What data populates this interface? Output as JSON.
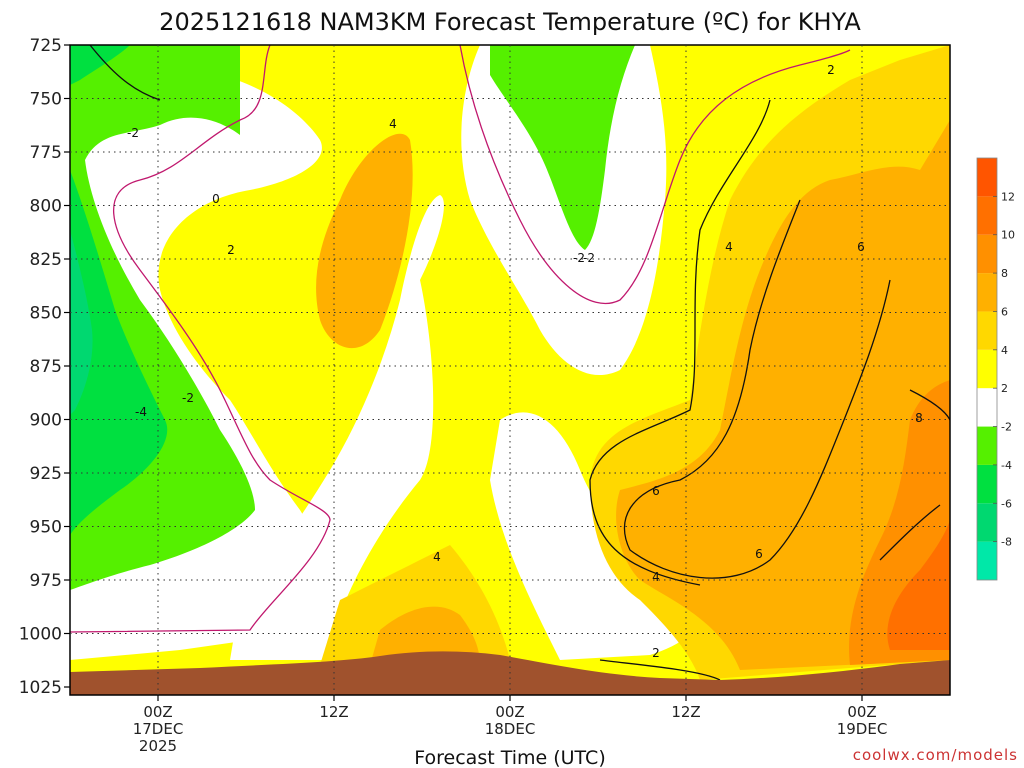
{
  "chart_data": {
    "type": "heatmap",
    "title": "2025121618 NAM3KM Forecast Temperature (ºC) for KHYA",
    "xlabel": "Forecast Time (UTC)",
    "ylabel": "",
    "y_scale": "pressure (inverted)",
    "ylim": [
      725,
      1025
    ],
    "y_ticks": [
      "725",
      "750",
      "775",
      "800",
      "825",
      "850",
      "875",
      "900",
      "925",
      "950",
      "975",
      "1000",
      "1025"
    ],
    "x_ticks": [
      {
        "lines": [
          "00Z",
          "17DEC",
          "2025"
        ]
      },
      {
        "lines": [
          "12Z"
        ]
      },
      {
        "lines": [
          "00Z",
          "18DEC"
        ]
      },
      {
        "lines": [
          "12Z"
        ]
      },
      {
        "lines": [
          "00Z",
          "19DEC"
        ]
      }
    ],
    "grid": true,
    "colorbar": {
      "levels": [
        -10,
        -8,
        -6,
        -4,
        -2,
        2,
        4,
        6,
        8,
        10,
        12,
        14
      ],
      "labels": [
        "12",
        "10",
        "8",
        "6",
        "4",
        "2",
        "-2",
        "-4",
        "-6",
        "-8"
      ],
      "colors": [
        "#00e8a8",
        "#00d870",
        "#00e040",
        "#55f000",
        "#ffffff",
        "#ffff00",
        "#ffd800",
        "#ffb000",
        "#ff9000",
        "#ff7000",
        "#ff5500"
      ]
    },
    "contour_labels": [
      "-2",
      "0",
      "-2",
      "2",
      "4",
      "-2",
      "-4",
      "-2",
      "4",
      "2",
      "4",
      "6",
      "8",
      "6",
      "6",
      "4",
      "2"
    ],
    "terrain_color": "#a0522d"
  },
  "credit": "coolwx.com/models"
}
